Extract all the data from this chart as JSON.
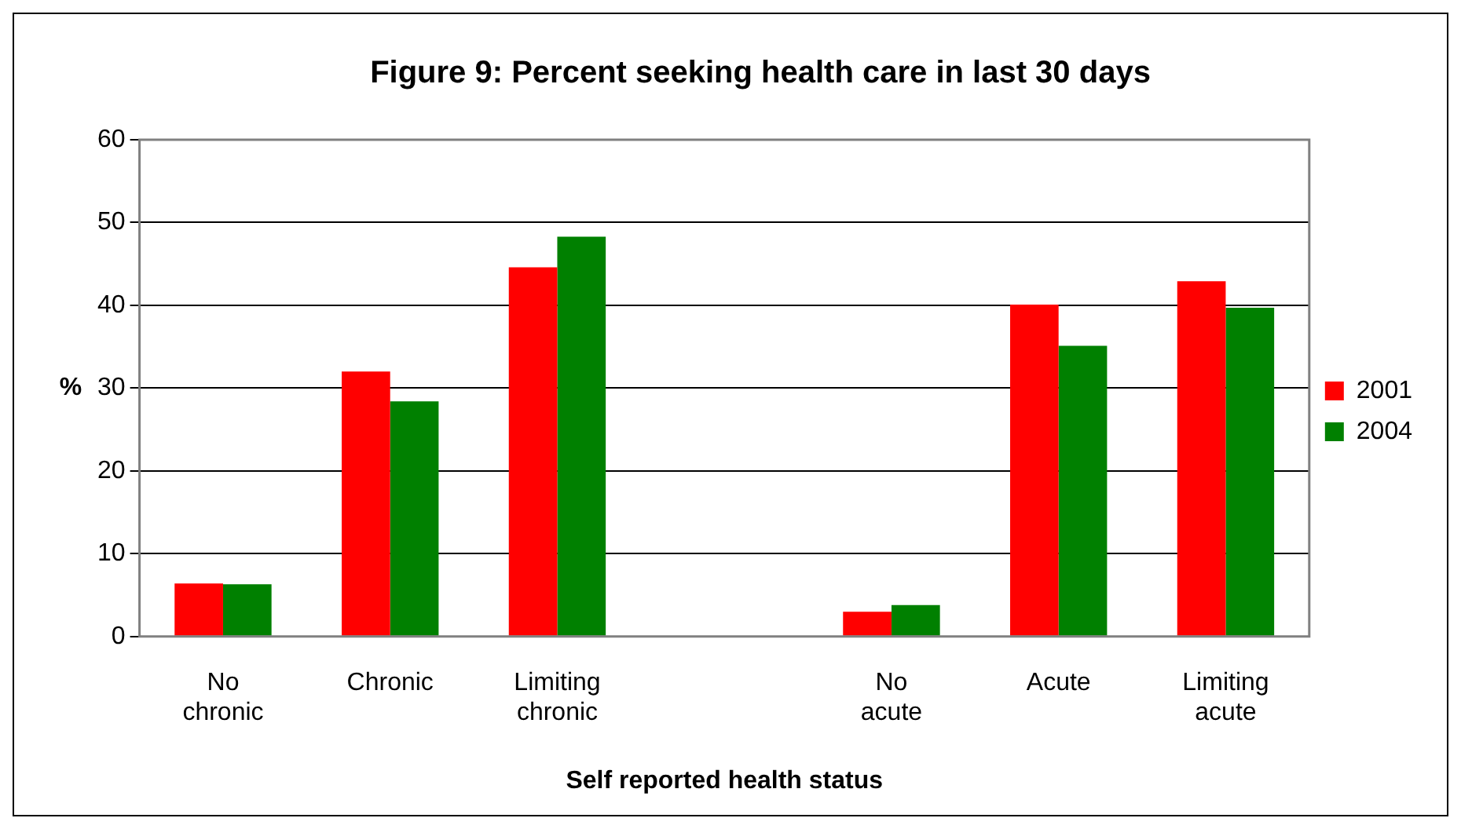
{
  "chart_data": {
    "type": "bar",
    "title": "Figure 9: Percent seeking health care in last 30 days",
    "xlabel": "Self reported health status",
    "ylabel": "%",
    "categories": [
      "No chronic",
      "Chronic",
      "Limiting chronic",
      null,
      "No acute",
      "Acute",
      "Limiting acute"
    ],
    "series": [
      {
        "name": "2001",
        "color": "#ff0000",
        "values": [
          6.4,
          32.0,
          44.6,
          null,
          3.0,
          40.1,
          42.9
        ]
      },
      {
        "name": "2004",
        "color": "#008000",
        "values": [
          6.3,
          28.4,
          48.3,
          null,
          3.8,
          35.1,
          39.7
        ]
      }
    ],
    "ylim": [
      0,
      60
    ],
    "yticks": [
      0,
      10,
      20,
      30,
      40,
      50,
      60
    ],
    "grid": "y",
    "legend": "right"
  }
}
